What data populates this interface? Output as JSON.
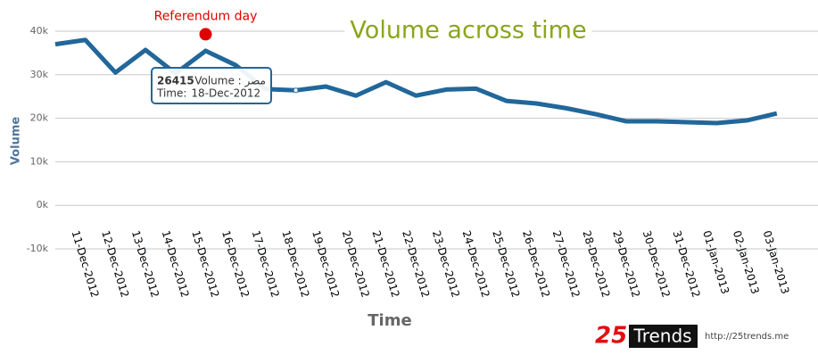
{
  "chart_data": {
    "type": "line",
    "title": "Volume across time",
    "x_label": "Time",
    "y_label": "Volume",
    "categories": [
      null,
      "11-Dec-2012",
      "12-Dec-2012",
      "13-Dec-2012",
      "14-Dec-2012",
      "15-Dec-2012",
      "16-Dec-2012",
      "17-Dec-2012",
      "18-Dec-2012",
      "19-Dec-2012",
      "20-Dec-2012",
      "21-Dec-2012",
      "22-Dec-2012",
      "23-Dec-2012",
      "24-Dec-2012",
      "25-Dec-2012",
      "26-Dec-2012",
      "27-Dec-2012",
      "28-Dec-2012",
      "29-Dec-2012",
      "30-Dec-2012",
      "31-Dec-2012",
      "01-Jan-2013",
      "02-Jan-2013",
      "03-Jan-2013"
    ],
    "series": [
      {
        "name": "مصر",
        "color": "#21679a",
        "values": [
          37000,
          38000,
          30500,
          35700,
          30300,
          35500,
          32200,
          26700,
          26415,
          27300,
          25200,
          28300,
          25200,
          26600,
          26800,
          24000,
          23400,
          22300,
          20900,
          19300,
          19300,
          19100,
          18900,
          19500,
          21100
        ]
      }
    ],
    "ylim": [
      -10000,
      40000
    ],
    "yticks": [
      {
        "value": -10000,
        "label": "-10k"
      },
      {
        "value": 0,
        "label": "0k"
      },
      {
        "value": 10000,
        "label": "10k"
      },
      {
        "value": 20000,
        "label": "20k"
      },
      {
        "value": 30000,
        "label": "30k"
      },
      {
        "value": 40000,
        "label": "40k"
      }
    ],
    "grid": true,
    "annotation": {
      "text": "Referendum day",
      "category_index": 5,
      "value": 39300,
      "color": "#e00000"
    },
    "tooltip": {
      "label": "مصر : Volume",
      "time_label": "Time:",
      "index": 8
    }
  },
  "branding": {
    "number": "25",
    "name": "Trends",
    "url": "http://25trends.me"
  }
}
